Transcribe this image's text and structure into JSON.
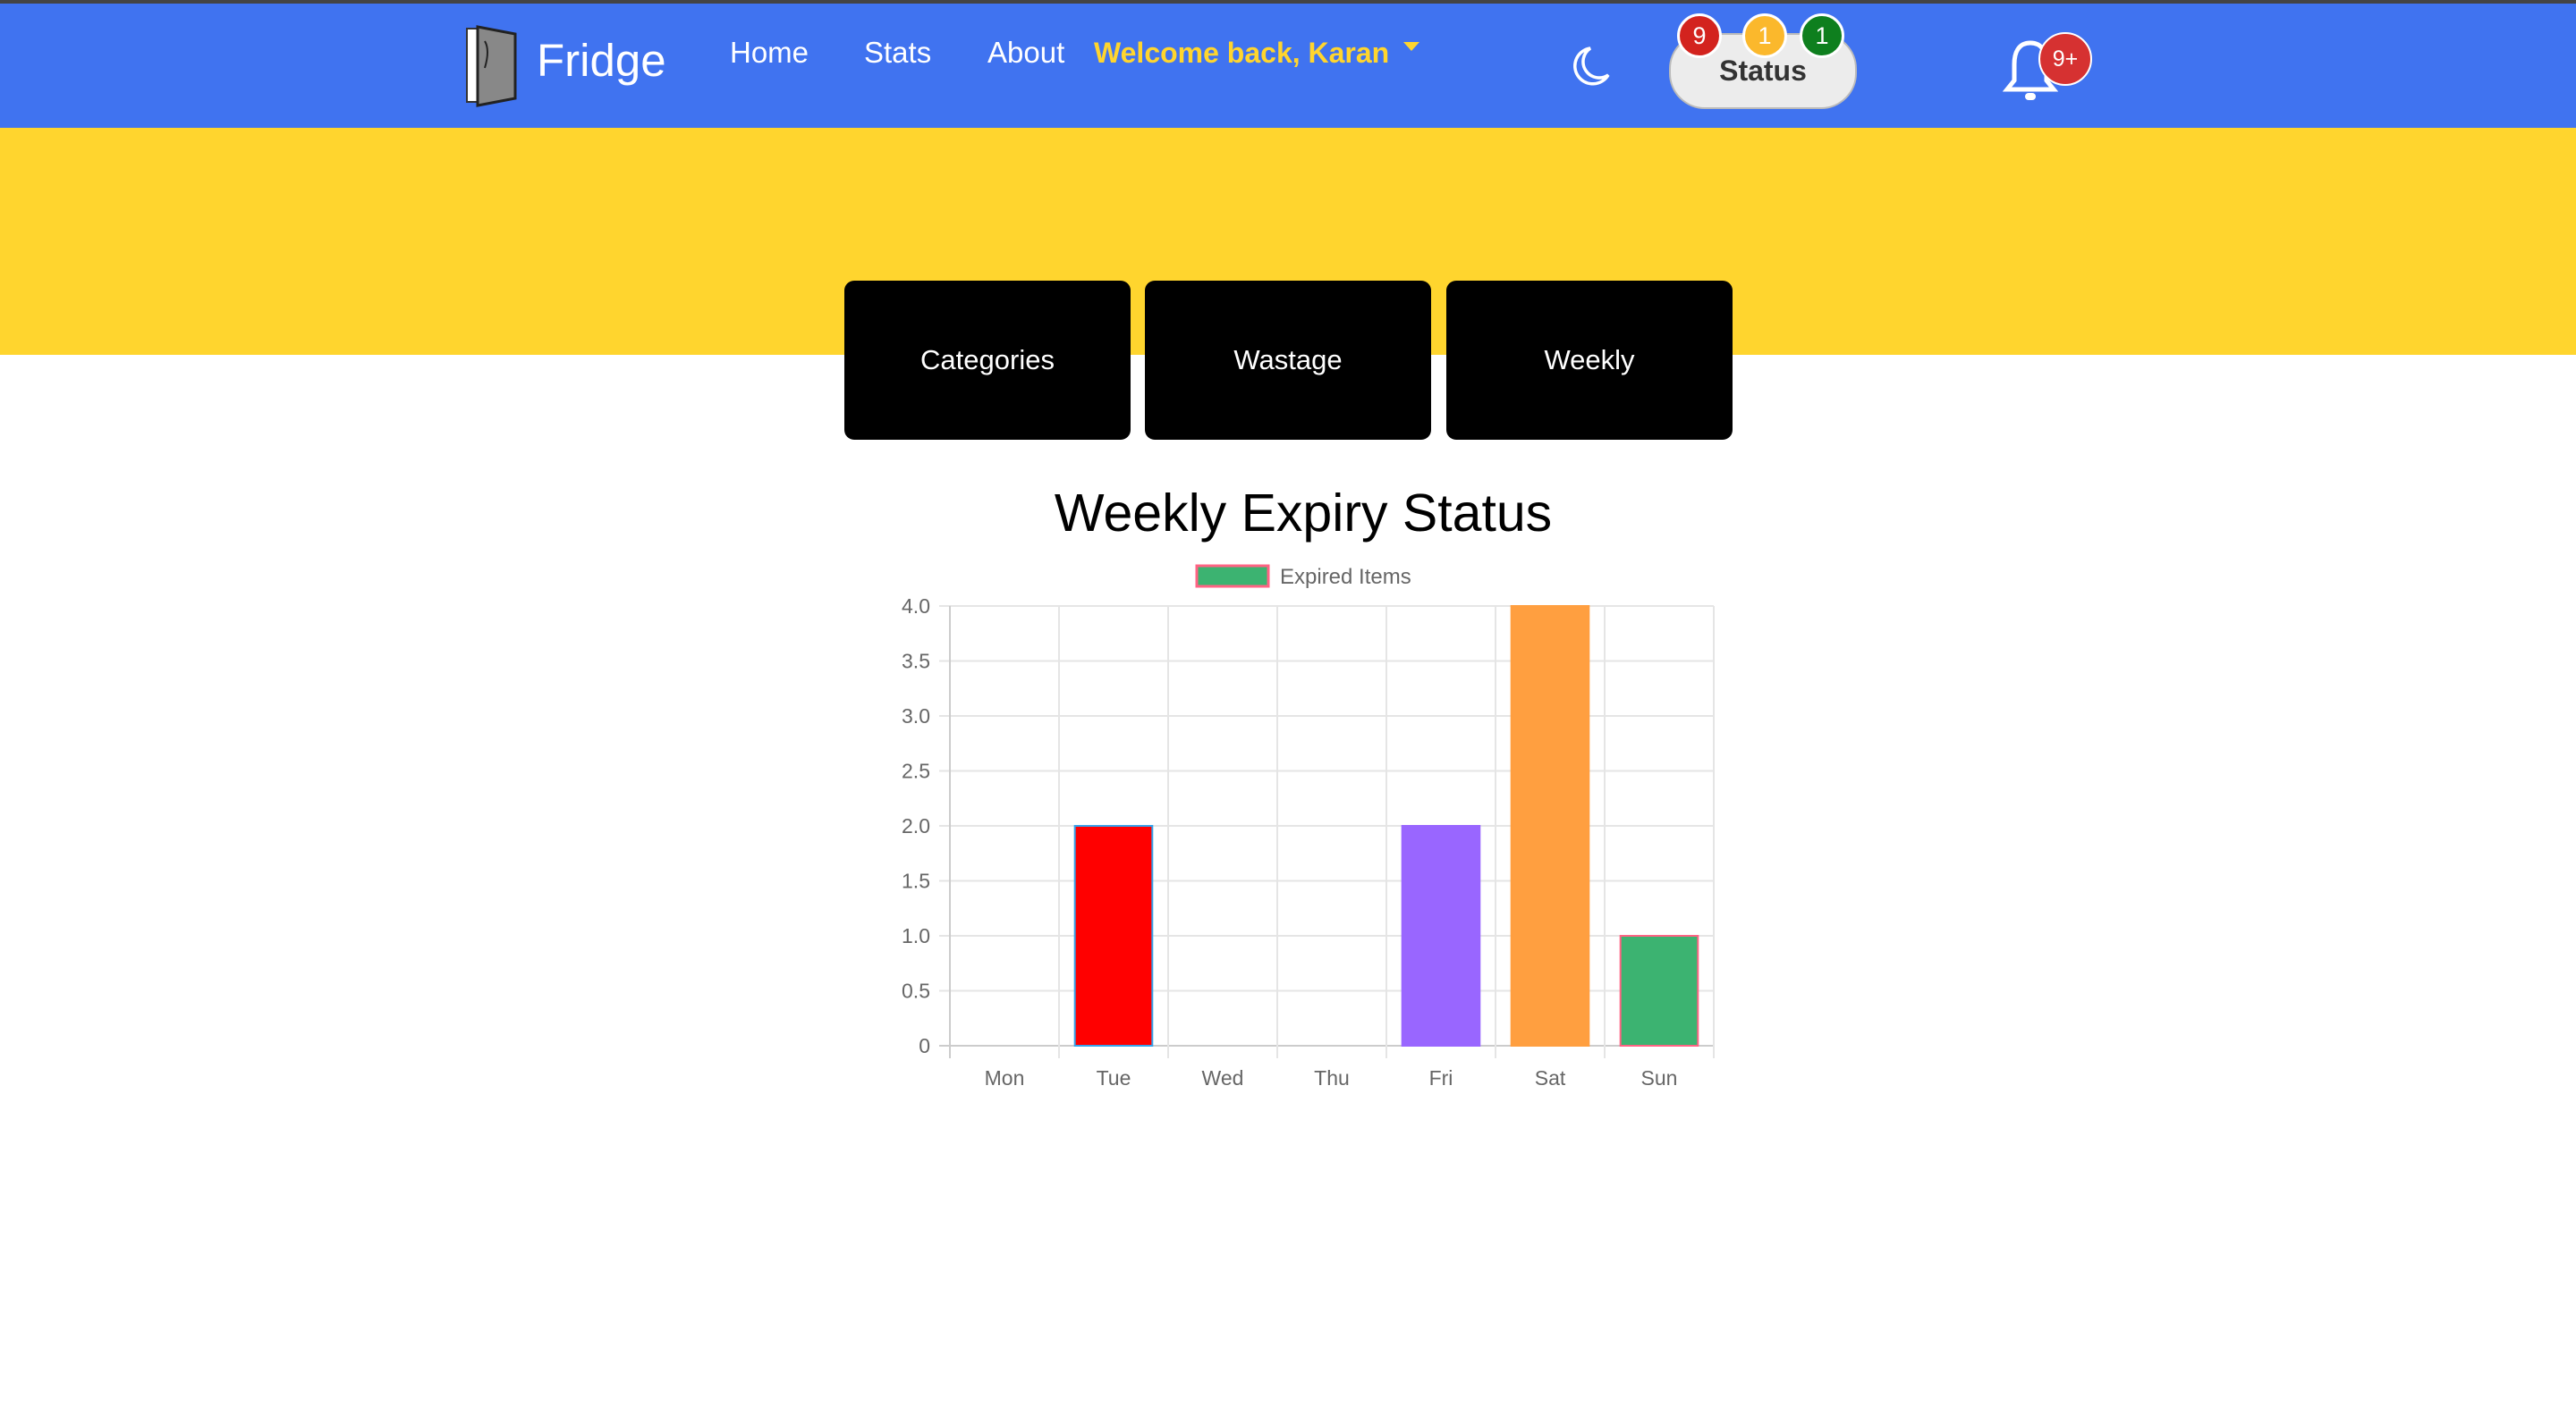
{
  "navbar": {
    "brand": "Fridge",
    "links": [
      "Home",
      "Stats",
      "About"
    ],
    "welcome": "Welcome back, Karan",
    "status_label": "Status",
    "status_badges": [
      {
        "value": "9",
        "color": "#D3231E"
      },
      {
        "value": "1",
        "color": "#FBB82C"
      },
      {
        "value": "1",
        "color": "#0E7F1E"
      }
    ],
    "notification_count": "9+",
    "icons": {
      "logo": "fridge-icon",
      "theme": "moon-icon",
      "notifications": "bell-icon"
    }
  },
  "tabs": [
    "Categories",
    "Wastage",
    "Weekly"
  ],
  "chart_data": {
    "type": "bar",
    "title": "Weekly Expiry Status",
    "categories": [
      "Mon",
      "Tue",
      "Wed",
      "Thu",
      "Fri",
      "Sat",
      "Sun"
    ],
    "series": [
      {
        "name": "Expired Items",
        "values": [
          0,
          2,
          0,
          0,
          2,
          4,
          1
        ],
        "colors": [
          "#36A2EB",
          "#FF0000",
          "#FFCE56",
          "#4BC0C0",
          "#9966FF",
          "#FF9F40",
          "#3CB371"
        ],
        "border_colors": [
          "#36A2EB",
          "#36A2EB",
          "#FFCE56",
          "#4BC0C0",
          "#9966FF",
          "#FF9F40",
          "#FF6384"
        ]
      }
    ],
    "yticks": [
      "0",
      "0.5",
      "1.0",
      "1.5",
      "2.0",
      "2.5",
      "3.0",
      "3.5",
      "4.0"
    ],
    "ylim": [
      0,
      4
    ],
    "grid": true,
    "legend": "top",
    "legend_color": "#3CB371",
    "legend_border": "#FF6384"
  }
}
